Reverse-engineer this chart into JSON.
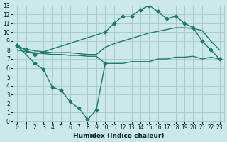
{
  "xlabel": "Humidex (Indice chaleur)",
  "xlim": [
    -0.5,
    23.5
  ],
  "ylim": [
    0,
    13
  ],
  "xticks": [
    0,
    1,
    2,
    3,
    4,
    5,
    6,
    7,
    8,
    9,
    10,
    11,
    12,
    13,
    14,
    15,
    16,
    17,
    18,
    19,
    20,
    21,
    22,
    23
  ],
  "yticks": [
    0,
    1,
    2,
    3,
    4,
    5,
    6,
    7,
    8,
    9,
    10,
    11,
    12,
    13
  ],
  "bg_color": "#cde8e8",
  "grid_color": "#aacccc",
  "line_color": "#1a7a6e",
  "line_width": 1.0,
  "marker": "D",
  "marker_size": 2.5,
  "curve1_x": [
    0,
    1,
    2,
    10,
    11,
    12,
    13,
    14,
    15,
    16,
    17,
    18,
    19,
    20,
    21,
    22,
    23
  ],
  "curve1_y": [
    8.5,
    8.0,
    7.5,
    10.0,
    11.0,
    11.8,
    11.8,
    12.5,
    13.0,
    12.3,
    11.5,
    11.8,
    11.0,
    10.5,
    9.0,
    8.0,
    7.0
  ],
  "curve2_x": [
    0,
    1,
    2,
    3,
    4,
    5,
    6,
    7,
    8,
    9,
    10,
    11,
    12,
    13,
    14,
    15,
    16,
    17,
    18,
    19,
    20,
    21,
    22,
    23
  ],
  "curve2_y": [
    8.3,
    8.1,
    7.9,
    7.8,
    7.7,
    7.7,
    7.7,
    7.6,
    7.5,
    7.5,
    8.3,
    8.7,
    9.0,
    9.3,
    9.6,
    9.9,
    10.1,
    10.3,
    10.5,
    10.5,
    10.4,
    10.2,
    9.0,
    8.0
  ],
  "curve3_x": [
    0,
    1,
    2,
    3,
    4,
    5,
    6,
    7,
    8,
    9,
    10,
    11,
    12,
    13,
    14,
    15,
    16,
    17,
    18,
    19,
    20,
    21,
    22,
    23
  ],
  "curve3_y": [
    8.0,
    7.8,
    7.7,
    7.6,
    7.5,
    7.5,
    7.4,
    7.4,
    7.3,
    7.3,
    6.5,
    6.5,
    6.5,
    6.7,
    6.7,
    6.7,
    7.0,
    7.0,
    7.2,
    7.2,
    7.3,
    7.0,
    7.2,
    7.0
  ],
  "curve4_x": [
    0,
    2,
    3,
    4,
    5,
    6,
    7,
    8,
    9,
    10
  ],
  "curve4_y": [
    8.5,
    6.5,
    5.8,
    3.8,
    3.5,
    2.2,
    1.5,
    0.2,
    1.3,
    6.5
  ]
}
